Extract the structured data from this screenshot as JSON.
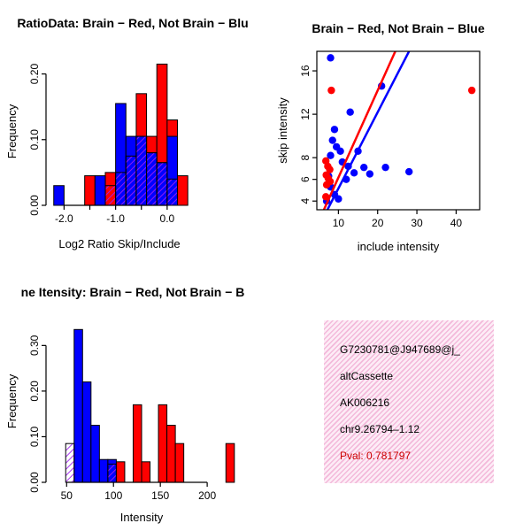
{
  "figure": {
    "background": "#ffffff",
    "colors": {
      "red": "#FF0000",
      "blue": "#0000FF",
      "overlap_purple": "#A020F0",
      "info_pink": "#F3B9DA",
      "pval_red": "#CC0000"
    }
  },
  "chart_data": [
    {
      "type": "bar",
      "subtype": "overlaid-histograms",
      "title": "RatioData: Brain − Red, Not Brain − Blu",
      "xlabel": "Log2 Ratio Skip/Include",
      "ylabel": "Frequency",
      "xlim": [
        -2.35,
        0.5
      ],
      "ylim": [
        0,
        0.225
      ],
      "xticks": [
        -2.0,
        -1.5,
        -1.0,
        -0.5,
        0.0
      ],
      "xtick_labels": [
        "-2.0",
        "",
        "-1.0",
        "",
        "0.0"
      ],
      "yticks": [
        0,
        0.1,
        0.2
      ],
      "ytick_labels": [
        "0.00",
        "0.10",
        "0.20"
      ],
      "legend_note": "red = Brain, blue = Not Brain, purple hatch = overlap",
      "bars": [
        {
          "x0": -2.2,
          "x1": -2.0,
          "h": 0.03,
          "s": "blue"
        },
        {
          "x0": -1.6,
          "x1": -1.4,
          "h": 0.045,
          "s": "red"
        },
        {
          "x0": -1.4,
          "x1": -1.2,
          "h": 0.045,
          "s": "blue"
        },
        {
          "x0": -1.2,
          "x1": -1.0,
          "h": 0.05,
          "s": "red"
        },
        {
          "x0": -1.2,
          "x1": -1.0,
          "h": 0.03,
          "s": "overlap"
        },
        {
          "x0": -1.0,
          "x1": -0.8,
          "h": 0.155,
          "s": "blue"
        },
        {
          "x0": -1.0,
          "x1": -0.8,
          "h": 0.05,
          "s": "red"
        },
        {
          "x0": -1.0,
          "x1": -0.8,
          "h": 0.05,
          "s": "overlap"
        },
        {
          "x0": -0.8,
          "x1": -0.6,
          "h": 0.105,
          "s": "blue"
        },
        {
          "x0": -0.8,
          "x1": -0.6,
          "h": 0.075,
          "s": "red"
        },
        {
          "x0": -0.8,
          "x1": -0.6,
          "h": 0.075,
          "s": "overlap"
        },
        {
          "x0": -0.6,
          "x1": -0.4,
          "h": 0.17,
          "s": "red"
        },
        {
          "x0": -0.6,
          "x1": -0.4,
          "h": 0.105,
          "s": "blue"
        },
        {
          "x0": -0.6,
          "x1": -0.4,
          "h": 0.105,
          "s": "overlap"
        },
        {
          "x0": -0.4,
          "x1": -0.2,
          "h": 0.105,
          "s": "red"
        },
        {
          "x0": -0.4,
          "x1": -0.2,
          "h": 0.08,
          "s": "blue"
        },
        {
          "x0": -0.4,
          "x1": -0.2,
          "h": 0.08,
          "s": "overlap"
        },
        {
          "x0": -0.2,
          "x1": 0.0,
          "h": 0.215,
          "s": "red"
        },
        {
          "x0": -0.2,
          "x1": 0.0,
          "h": 0.065,
          "s": "blue"
        },
        {
          "x0": -0.2,
          "x1": 0.0,
          "h": 0.065,
          "s": "overlap"
        },
        {
          "x0": 0.0,
          "x1": 0.2,
          "h": 0.13,
          "s": "red"
        },
        {
          "x0": 0.0,
          "x1": 0.2,
          "h": 0.105,
          "s": "blue"
        },
        {
          "x0": 0.0,
          "x1": 0.2,
          "h": 0.04,
          "s": "overlap"
        },
        {
          "x0": 0.2,
          "x1": 0.4,
          "h": 0.045,
          "s": "red"
        }
      ]
    },
    {
      "type": "scatter",
      "title": "Brain − Red, Not Brain − Blue",
      "xlabel": "include intensity",
      "ylabel": "skip intensity",
      "xlim": [
        4.5,
        46
      ],
      "ylim": [
        3.2,
        17.8
      ],
      "xticks": [
        10,
        20,
        30,
        40
      ],
      "xtick_labels": [
        "10",
        "20",
        "30",
        "40"
      ],
      "yticks": [
        4,
        6,
        8,
        12,
        16
      ],
      "ytick_labels": [
        "4",
        "6",
        "8",
        "12",
        "16"
      ],
      "points": {
        "blue": [
          [
            8,
            17.2
          ],
          [
            13,
            12.2
          ],
          [
            21,
            14.6
          ],
          [
            9,
            10.6
          ],
          [
            8.5,
            9.6
          ],
          [
            9.5,
            9.0
          ],
          [
            8,
            8.2
          ],
          [
            10.5,
            8.6
          ],
          [
            15,
            8.6
          ],
          [
            11,
            7.6
          ],
          [
            12.5,
            7.2
          ],
          [
            14,
            6.6
          ],
          [
            16.5,
            7.1
          ],
          [
            18,
            6.5
          ],
          [
            22,
            7.1
          ],
          [
            28,
            6.7
          ],
          [
            7.5,
            6.3
          ],
          [
            12,
            6.0
          ],
          [
            8,
            5.3
          ],
          [
            9,
            4.6
          ],
          [
            10,
            4.2
          ],
          [
            7,
            4.0
          ]
        ],
        "red": [
          [
            6.8,
            7.7
          ],
          [
            7.3,
            7.2
          ],
          [
            7.8,
            6.9
          ],
          [
            6.9,
            6.4
          ],
          [
            7.4,
            6.1
          ],
          [
            7.9,
            5.8
          ],
          [
            7.0,
            5.5
          ],
          [
            8.2,
            14.2
          ],
          [
            44,
            14.2
          ],
          [
            6.8,
            4.4
          ]
        ]
      },
      "lines": [
        {
          "color": "red",
          "from": [
            6.3,
            3.2
          ],
          "to": [
            24.5,
            17.8
          ]
        },
        {
          "color": "blue",
          "from": [
            7.2,
            3.2
          ],
          "to": [
            28.0,
            17.8
          ]
        }
      ]
    },
    {
      "type": "bar",
      "subtype": "overlaid-histograms",
      "title": "ne Itensity: Brain − Red, Not Brain − B",
      "xlabel": "Intensity",
      "ylabel": "Frequency",
      "xlim": [
        28,
        232
      ],
      "ylim": [
        0,
        0.355
      ],
      "xticks": [
        50,
        100,
        150,
        200
      ],
      "xtick_labels": [
        "50",
        "100",
        "150",
        "200"
      ],
      "yticks": [
        0,
        0.1,
        0.2,
        0.3
      ],
      "ytick_labels": [
        "0.00",
        "0.10",
        "0.20",
        "0.30"
      ],
      "legend_note": "red = Brain, blue = Not Brain, purple hatch = overlap",
      "bars": [
        {
          "x0": 49,
          "x1": 58,
          "h": 0.085,
          "s": "overlap"
        },
        {
          "x0": 58,
          "x1": 67,
          "h": 0.335,
          "s": "blue"
        },
        {
          "x0": 67,
          "x1": 76,
          "h": 0.22,
          "s": "blue"
        },
        {
          "x0": 76,
          "x1": 85,
          "h": 0.125,
          "s": "blue"
        },
        {
          "x0": 85,
          "x1": 94,
          "h": 0.05,
          "s": "blue"
        },
        {
          "x0": 94,
          "x1": 103,
          "h": 0.05,
          "s": "blue"
        },
        {
          "x0": 94,
          "x1": 103,
          "h": 0.04,
          "s": "overlap"
        },
        {
          "x0": 103,
          "x1": 112,
          "h": 0.045,
          "s": "red"
        },
        {
          "x0": 121,
          "x1": 130,
          "h": 0.17,
          "s": "red"
        },
        {
          "x0": 130,
          "x1": 139,
          "h": 0.045,
          "s": "red"
        },
        {
          "x0": 148,
          "x1": 157,
          "h": 0.17,
          "s": "red"
        },
        {
          "x0": 157,
          "x1": 166,
          "h": 0.125,
          "s": "red"
        },
        {
          "x0": 166,
          "x1": 175,
          "h": 0.085,
          "s": "red"
        },
        {
          "x0": 220,
          "x1": 229,
          "h": 0.085,
          "s": "red"
        }
      ]
    }
  ],
  "info_box": {
    "lines": [
      "G7230781@J947689@j_",
      "altCassette",
      "AK006216",
      "chr9.26794–1.12"
    ],
    "pval": "Pval: 0.781797"
  }
}
